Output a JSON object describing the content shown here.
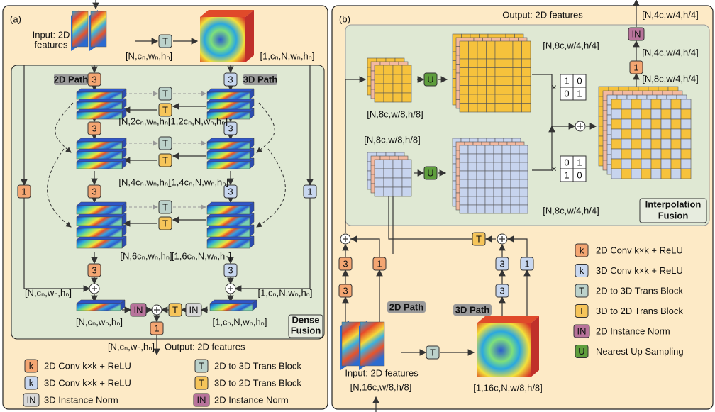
{
  "panel_a": {
    "label": "(a)",
    "input_label": [
      "Input: 2D",
      "features"
    ],
    "path_2d": "2D Path",
    "path_3d": "3D Path",
    "blocks": [
      "T",
      "3",
      "3",
      "T",
      "T",
      "3",
      "3",
      "T",
      "T",
      "1",
      "1",
      "3",
      "3",
      "T",
      "T",
      "3",
      "3",
      "IN",
      "T",
      "IN",
      "1"
    ],
    "dims": [
      "[N,cₙ,wₙ,hₙ]",
      "[1,cₙ,N,wₙ,hₙ]",
      "[N,2cₙ,wₙ,hₙ]",
      "[1,2cₙ,N,wₙ,hₙ]",
      "[N,4cₙ,wₙ,hₙ]",
      "[1,4cₙ,N,wₙ,hₙ]",
      "[N,6cₙ,wₙ,hₙ]",
      "[1,6cₙ,N,wₙ,hₙ]",
      "[N,cₙ,wₙ,hₙ]",
      "[1,cₙ,N,wₙ,hₙ]",
      "[N,cₙ,wₙ,hₙ]",
      "[1,cₙ,N,wₙ,hₙ]",
      "[N,cₙ,wₙ,hₙ]"
    ],
    "fusion_label": [
      "Dense",
      "Fusion"
    ],
    "output_label": "Output: 2D features",
    "legend": [
      {
        "symbol": "k",
        "text": "2D Conv k×k + ReLU"
      },
      {
        "symbol": "k",
        "text": "3D Conv k×k + ReLU"
      },
      {
        "symbol": "IN",
        "text": "3D Instance Norm"
      },
      {
        "symbol": "T",
        "text": "2D to 3D Trans Block"
      },
      {
        "symbol": "T",
        "text": "3D to 2D Trans Block"
      },
      {
        "symbol": "IN",
        "text": "2D Instance Norm"
      }
    ]
  },
  "panel_b": {
    "label": "(b)",
    "output_label": "Output: 2D features",
    "input_label": "Input: 2D features",
    "path_2d": "2D Path",
    "path_3d": "3D Path",
    "blocks": [
      "IN",
      "1",
      "U",
      "U",
      "T",
      "3",
      "1",
      "3",
      "3",
      "1",
      "3",
      "T"
    ],
    "dims": [
      "[N,4c,w/4,h/4]",
      "[N,4c,w/4,h/4]",
      "[N,8c,w/4,h/4]",
      "[N,8c,w/4,h/4]",
      "[N,8c,w/8,h/8]",
      "[N,8c,w/8,h/8]",
      "[N,8c,w/4,h/4]",
      "[N,16c,w/8,h/8]",
      "[1,16c,N,w/8,h/8]"
    ],
    "matrices": [
      {
        "times": "×",
        "entries": [
          "1",
          "0",
          "0",
          "1"
        ]
      },
      {
        "times": "×",
        "entries": [
          "0",
          "1",
          "1",
          "0"
        ]
      }
    ],
    "fusion_label": [
      "Interpolation",
      "Fusion"
    ],
    "legend": [
      {
        "symbol": "k",
        "text": "2D Conv k×k + ReLU"
      },
      {
        "symbol": "k",
        "text": "3D Conv k×k + ReLU"
      },
      {
        "symbol": "T",
        "text": "2D to 3D Trans Block"
      },
      {
        "symbol": "T",
        "text": "3D to 2D Trans Block"
      },
      {
        "symbol": "IN",
        "text": "2D Instance Norm"
      },
      {
        "symbol": "U",
        "text": "Nearest Up Sampling"
      }
    ]
  }
}
